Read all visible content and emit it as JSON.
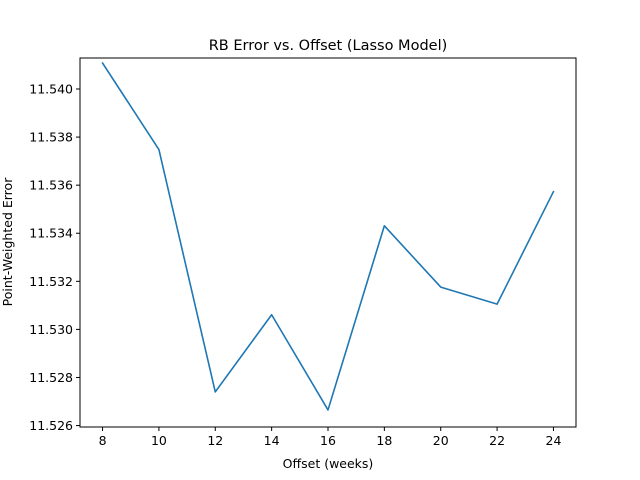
{
  "chart_data": {
    "type": "line",
    "title": "RB Error vs. Offset (Lasso Model)",
    "xlabel": "Offset (weeks)",
    "ylabel": "Point-Weighted Error",
    "xlim": [
      7.2,
      24.8
    ],
    "ylim": [
      11.52594,
      11.54129
    ],
    "xticks": [
      "8",
      "10",
      "12",
      "14",
      "16",
      "18",
      "20",
      "22",
      "24"
    ],
    "yticks": [
      "11.526",
      "11.528",
      "11.530",
      "11.532",
      "11.534",
      "11.536",
      "11.538",
      "11.540"
    ],
    "grid": false,
    "series": [
      {
        "color": "#1f77b4",
        "x": [
          8,
          10,
          12,
          14,
          16,
          18,
          20,
          22,
          24
        ],
        "y": [
          11.54108,
          11.53748,
          11.5274,
          11.53061,
          11.52665,
          11.53431,
          11.53176,
          11.53105,
          11.53573
        ]
      }
    ]
  }
}
